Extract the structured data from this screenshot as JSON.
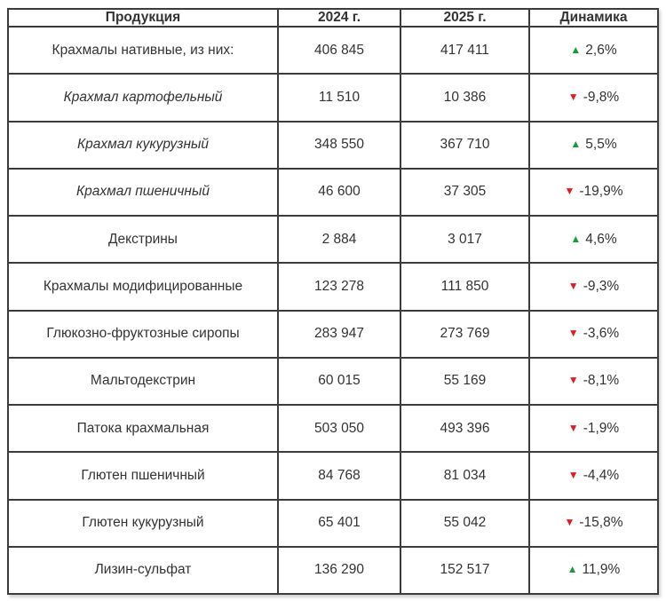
{
  "table": {
    "columns": [
      "Продукция",
      "2024 г.",
      "2025 г.",
      "Динамика"
    ],
    "rows": [
      {
        "product": "Крахмалы нативные, из них:",
        "y2024": "406 845",
        "y2025": "417 411",
        "trend": "up",
        "delta": "2,6%",
        "italic": false
      },
      {
        "product": "Крахмал картофельный",
        "y2024": "11 510",
        "y2025": "10 386",
        "trend": "down",
        "delta": "-9,8%",
        "italic": true
      },
      {
        "product": "Крахмал кукурузный",
        "y2024": "348 550",
        "y2025": "367 710",
        "trend": "up",
        "delta": "5,5%",
        "italic": true
      },
      {
        "product": "Крахмал пшеничный",
        "y2024": "46 600",
        "y2025": "37 305",
        "trend": "down",
        "delta": "-19,9%",
        "italic": true
      },
      {
        "product": "Декстрины",
        "y2024": "2 884",
        "y2025": "3 017",
        "trend": "up",
        "delta": "4,6%",
        "italic": false
      },
      {
        "product": "Крахмалы модифицированные",
        "y2024": "123 278",
        "y2025": "111 850",
        "trend": "down",
        "delta": "-9,3%",
        "italic": false
      },
      {
        "product": "Глюкозно-фруктозные сиропы",
        "y2024": "283 947",
        "y2025": "273 769",
        "trend": "down",
        "delta": "-3,6%",
        "italic": false
      },
      {
        "product": "Мальтодекстрин",
        "y2024": "60 015",
        "y2025": "55 169",
        "trend": "down",
        "delta": "-8,1%",
        "italic": false
      },
      {
        "product": "Патока крахмальная",
        "y2024": "503 050",
        "y2025": "493 396",
        "trend": "down",
        "delta": "-1,9%",
        "italic": false
      },
      {
        "product": "Глютен пшеничный",
        "y2024": "84 768",
        "y2025": "81 034",
        "trend": "down",
        "delta": "-4,4%",
        "italic": false
      },
      {
        "product": "Глютен кукурузный",
        "y2024": "65 401",
        "y2025": "55 042",
        "trend": "down",
        "delta": "-15,8%",
        "italic": false
      },
      {
        "product": "Лизин-сульфат",
        "y2024": "136 290",
        "y2025": "152 517",
        "trend": "up",
        "delta": "11,9%",
        "italic": false
      }
    ]
  },
  "icons": {
    "up": "▲",
    "down": "▼"
  },
  "colors": {
    "up": "#169b3e",
    "down": "#e01b24",
    "border": "#3c3c3c",
    "text": "#333333"
  }
}
